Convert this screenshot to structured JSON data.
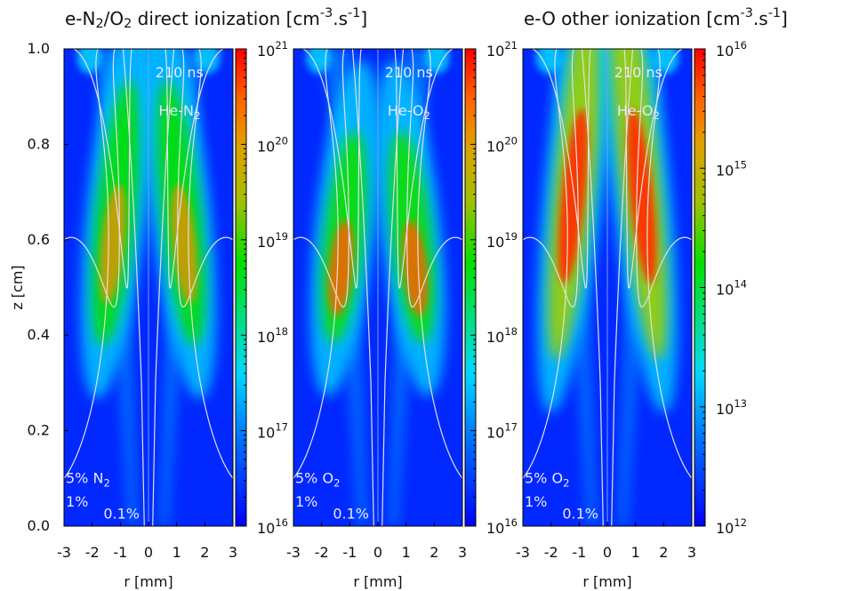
{
  "chart_data": [
    {
      "type": "heatmap",
      "title": "e-N_{2}/O_{2} direct ionization [cm^{-3}.s^{-1}]",
      "xlabel": "r [mm]",
      "ylabel": "z [cm]",
      "xlim": [
        -3,
        3
      ],
      "xticks": [
        -3,
        -2,
        -1,
        0,
        1,
        2,
        3
      ],
      "ylim": [
        0,
        1
      ],
      "yticks": [
        {
          "value": 0,
          "label": "0.0"
        },
        0.2,
        0.4,
        0.6,
        0.8,
        {
          "value": 1,
          "label": "1.0"
        }
      ],
      "colorbar": {
        "scale": "log",
        "lim": [
          1e+16,
          1e+21
        ],
        "ticks": [
          {
            "value": 1e+16,
            "label": "10^{16}"
          },
          {
            "value": 1e+17,
            "label": "10^{17}"
          },
          {
            "value": 1e+18,
            "label": "10^{18}"
          },
          {
            "value": 1e+19,
            "label": "10^{19}"
          },
          {
            "value": 1e+20,
            "label": "10^{20}"
          },
          {
            "value": 1e+21,
            "label": "10^{21}"
          }
        ]
      },
      "annotations": [
        "210 ns",
        "He-N_{2}",
        "5% N_{2}",
        "1%",
        "0.1%"
      ],
      "style": "n2"
    },
    {
      "type": "heatmap",
      "xlabel": "r [mm]",
      "xlim": [
        -3,
        3
      ],
      "xticks": [
        -3,
        -2,
        -1,
        0,
        1,
        2,
        3
      ],
      "ylim": [
        0,
        1
      ],
      "colorbar": {
        "scale": "log",
        "lim": [
          1e+16,
          1e+21
        ],
        "ticks": [
          {
            "value": 1e+16,
            "label": "10^{16}"
          },
          {
            "value": 1e+17,
            "label": "10^{17}"
          },
          {
            "value": 1e+18,
            "label": "10^{18}"
          },
          {
            "value": 1e+19,
            "label": "10^{19}"
          },
          {
            "value": 1e+20,
            "label": "10^{20}"
          },
          {
            "value": 1e+21,
            "label": "10^{21}"
          }
        ]
      },
      "annotations": [
        "210 ns",
        "He-O_{2}",
        "5% O_{2}",
        "1%",
        "0.1%"
      ],
      "style": "o2"
    },
    {
      "type": "heatmap",
      "title": "e-O other ionization [cm^{-3}.s^{-1}]",
      "xlabel": "r [mm]",
      "xlim": [
        -3,
        3
      ],
      "xticks": [
        -3,
        -2,
        -1,
        0,
        1,
        2,
        3
      ],
      "ylim": [
        0,
        1
      ],
      "colorbar": {
        "scale": "log",
        "lim": [
          1000000000000.0,
          1e+16
        ],
        "ticks": [
          {
            "value": 1000000000000.0,
            "label": "10^{12}"
          },
          {
            "value": 10000000000000.0,
            "label": "10^{13}"
          },
          {
            "value": 100000000000000.0,
            "label": "10^{14}"
          },
          {
            "value": 1000000000000000.0,
            "label": "10^{15}"
          },
          {
            "value": 1e+16,
            "label": "10^{16}"
          }
        ]
      },
      "annotations": [
        "210 ns",
        "He-O_{2}",
        "5% O_{2}",
        "1%",
        "0.1%"
      ],
      "style": "o"
    }
  ]
}
